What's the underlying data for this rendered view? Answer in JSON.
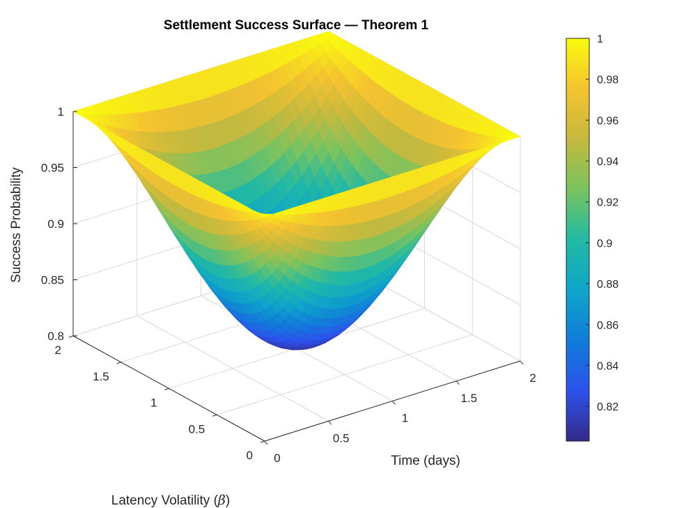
{
  "chart_data": {
    "type": "surface",
    "title": "Settlement Success Surface — Theorem 1",
    "xlabel": "Time (days)",
    "ylabel_prefix": "Latency Volatility (",
    "ylabel_symbol": "β",
    "ylabel_suffix": ")",
    "zlabel": "Success Probability",
    "xlim": [
      0,
      2
    ],
    "ylim": [
      0,
      2
    ],
    "zlim": [
      0.8,
      1
    ],
    "x_ticks": [
      "0",
      "0.5",
      "1",
      "1.5",
      "2"
    ],
    "y_ticks": [
      "0",
      "0.5",
      "1",
      "1.5",
      "2"
    ],
    "z_ticks": [
      "0.8",
      "0.85",
      "0.9",
      "0.95",
      "1"
    ],
    "z_min": 0.803,
    "z_max": 1,
    "surface_formula": "P(t, beta) = 1 - 0.197 * t*(2-t) * beta*(2-beta)",
    "corner_values": {
      "t0_b0": 1,
      "t0_b2": 1,
      "t2_b0": 1,
      "t2_b2": 1,
      "t1_b1": 0.803
    },
    "colorbar": {
      "min": 0.803,
      "max": 1,
      "tick_values": [
        0.82,
        0.84,
        0.86,
        0.88,
        0.9,
        0.92,
        0.94,
        0.96,
        0.98,
        1
      ],
      "tick_labels": [
        "0.82",
        "0.84",
        "0.86",
        "0.88",
        "0.9",
        "0.92",
        "0.94",
        "0.96",
        "0.98",
        "1"
      ],
      "colormap": "parula"
    }
  }
}
